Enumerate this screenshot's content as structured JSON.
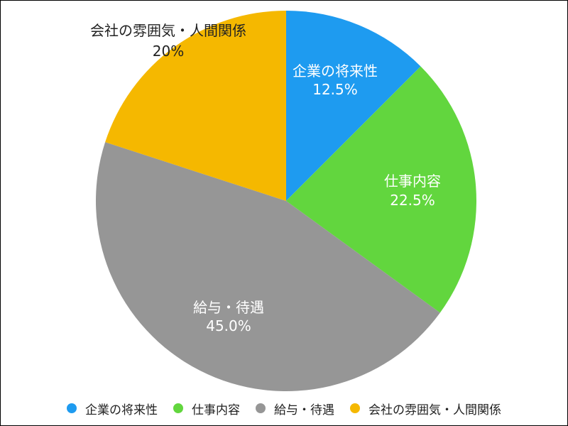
{
  "chart_data": {
    "type": "pie",
    "title": "",
    "start_angle_deg": 0,
    "direction": "clockwise",
    "slices": [
      {
        "label": "企業の将来性",
        "value": 12.5,
        "value_label": "12.5%",
        "color": "#1E9BF0",
        "label_color": "#FFFFFF"
      },
      {
        "label": "仕事内容",
        "value": 22.5,
        "value_label": "22.5%",
        "color": "#62D63E",
        "label_color": "#FFFFFF"
      },
      {
        "label": "給与・待遇",
        "value": 45.0,
        "value_label": "45.0%",
        "color": "#969696",
        "label_color": "#FFFFFF"
      },
      {
        "label": "会社の雰囲気・人間関係",
        "value": 20,
        "value_label": "20%",
        "color": "#F5B800",
        "label_color": "#222222"
      }
    ],
    "legend": {
      "position": "bottom",
      "items": [
        "企業の将来性",
        "仕事内容",
        "給与・待遇",
        "会社の雰囲気・人間関係"
      ]
    }
  }
}
